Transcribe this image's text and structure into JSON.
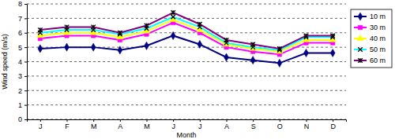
{
  "chart_data": {
    "type": "line",
    "x_label": "Month",
    "y_label": "Wind speed (m/s)",
    "categories": [
      "J",
      "F",
      "M",
      "A",
      "M",
      "J",
      "J",
      "A",
      "S",
      "O",
      "N",
      "D"
    ],
    "series": [
      {
        "name": "10 m",
        "color": "#000080",
        "marker": "diamond",
        "values": [
          4.9,
          5.0,
          5.0,
          4.8,
          5.1,
          5.8,
          5.2,
          4.3,
          4.1,
          3.9,
          4.6,
          4.6
        ]
      },
      {
        "name": "30 m",
        "color": "#ff00ff",
        "marker": "square",
        "values": [
          5.6,
          5.8,
          5.8,
          5.5,
          5.9,
          6.7,
          6.0,
          5.0,
          4.7,
          4.5,
          5.3,
          5.3
        ]
      },
      {
        "name": "40 m",
        "color": "#ffff00",
        "marker": "triangle",
        "values": [
          5.8,
          6.0,
          6.0,
          5.7,
          6.1,
          6.9,
          6.2,
          5.2,
          4.9,
          4.7,
          5.5,
          5.5
        ]
      },
      {
        "name": "50 m",
        "color": "#00ffff",
        "marker": "x",
        "values": [
          6.0,
          6.2,
          6.2,
          5.9,
          6.3,
          7.1,
          6.4,
          5.3,
          5.0,
          4.8,
          5.7,
          5.7
        ]
      },
      {
        "name": "60 m",
        "color": "#800080",
        "marker": "asterisk",
        "values": [
          6.2,
          6.4,
          6.4,
          6.0,
          6.5,
          7.4,
          6.6,
          5.5,
          5.2,
          4.9,
          5.8,
          5.8
        ]
      }
    ],
    "ylim": [
      0,
      8
    ],
    "yticks": [
      0,
      1,
      2,
      3,
      4,
      5,
      6,
      7,
      8
    ],
    "grid": true,
    "legend": "right"
  }
}
